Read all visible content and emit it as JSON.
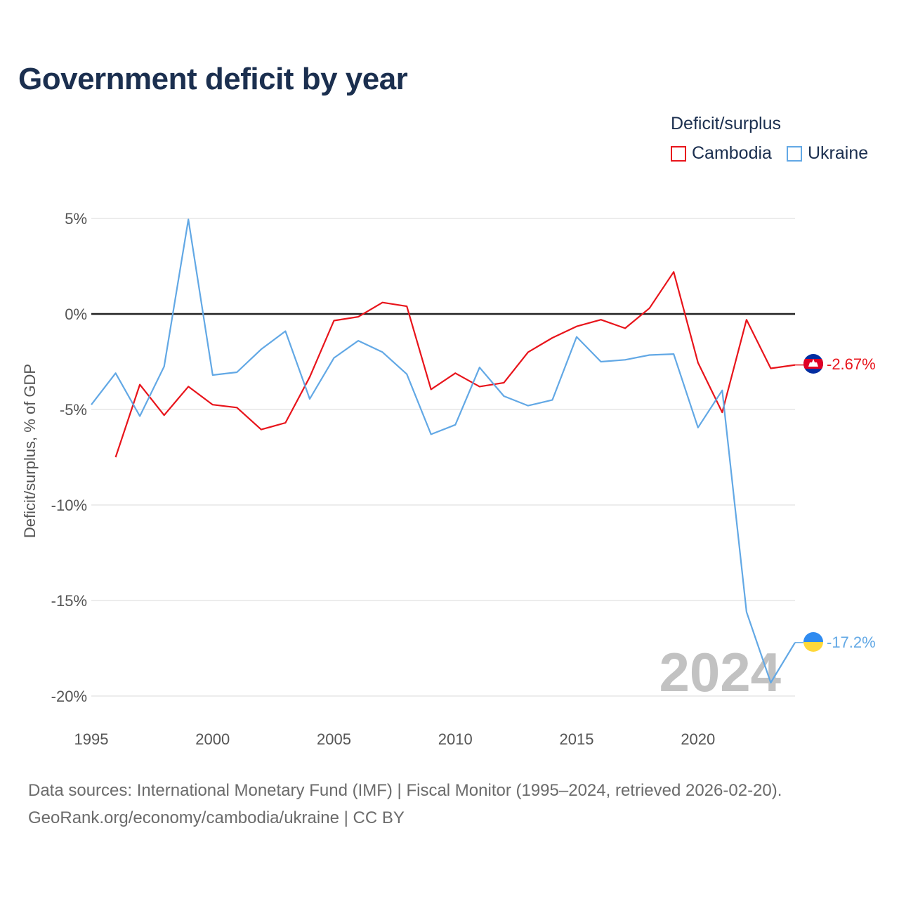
{
  "title": "Government deficit by year",
  "legend": {
    "title": "Deficit/surplus",
    "items": [
      {
        "label": "Cambodia",
        "color": "#e8141b"
      },
      {
        "label": "Ukraine",
        "color": "#62a8e5"
      }
    ]
  },
  "footer": {
    "line1": "Data sources: International Monetary Fund (IMF) | Fiscal Monitor (1995–2024, retrieved 2026-02-20).",
    "line2": "GeoRank.org/economy/cambodia/ukraine | CC BY"
  },
  "chart_data": {
    "type": "line",
    "title": "Government deficit by year",
    "xlabel": "",
    "ylabel": "Deficit/surplus, % of GDP",
    "xlim": [
      1995,
      2024
    ],
    "ylim": [
      -20,
      5
    ],
    "x_ticks": [
      1995,
      2000,
      2005,
      2010,
      2015,
      2020
    ],
    "y_ticks": [
      {
        "value": 5,
        "label": "5%"
      },
      {
        "value": 0,
        "label": "0%"
      },
      {
        "value": -5,
        "label": "-5%"
      },
      {
        "value": -10,
        "label": "-10%"
      },
      {
        "value": -15,
        "label": "-15%"
      },
      {
        "value": -20,
        "label": "-20%"
      }
    ],
    "zero_line": true,
    "watermark": "2024",
    "series": [
      {
        "name": "Cambodia",
        "color": "#e8141b",
        "end_label": "-2.67%",
        "x": [
          1996,
          1997,
          1998,
          1999,
          2000,
          2001,
          2002,
          2003,
          2004,
          2005,
          2006,
          2007,
          2008,
          2009,
          2010,
          2011,
          2012,
          2013,
          2014,
          2015,
          2016,
          2017,
          2018,
          2019,
          2020,
          2021,
          2022,
          2023,
          2024
        ],
        "values": [
          -7.5,
          -3.7,
          -5.3,
          -3.8,
          -4.75,
          -4.9,
          -6.05,
          -5.7,
          -3.3,
          -0.35,
          -0.15,
          0.6,
          0.4,
          -3.95,
          -3.1,
          -3.8,
          -3.6,
          -2.0,
          -1.25,
          -0.65,
          -0.3,
          -0.75,
          0.3,
          2.2,
          -2.55,
          -5.15,
          -0.3,
          -2.85,
          -2.67
        ]
      },
      {
        "name": "Ukraine",
        "color": "#62a8e5",
        "end_label": "-17.2%",
        "x": [
          1995,
          1996,
          1997,
          1998,
          1999,
          2000,
          2001,
          2002,
          2003,
          2004,
          2005,
          2006,
          2007,
          2008,
          2009,
          2010,
          2011,
          2012,
          2013,
          2014,
          2015,
          2016,
          2017,
          2018,
          2019,
          2020,
          2021,
          2022,
          2023,
          2024
        ],
        "values": [
          -4.75,
          -3.1,
          -5.35,
          -2.75,
          4.95,
          -3.2,
          -3.05,
          -1.85,
          -0.9,
          -4.45,
          -2.3,
          -1.4,
          -2.0,
          -3.15,
          -6.3,
          -5.8,
          -2.8,
          -4.3,
          -4.8,
          -4.5,
          -1.2,
          -2.5,
          -2.4,
          -2.15,
          -2.1,
          -5.95,
          -4.0,
          -15.6,
          -19.3,
          -17.2
        ]
      }
    ]
  }
}
